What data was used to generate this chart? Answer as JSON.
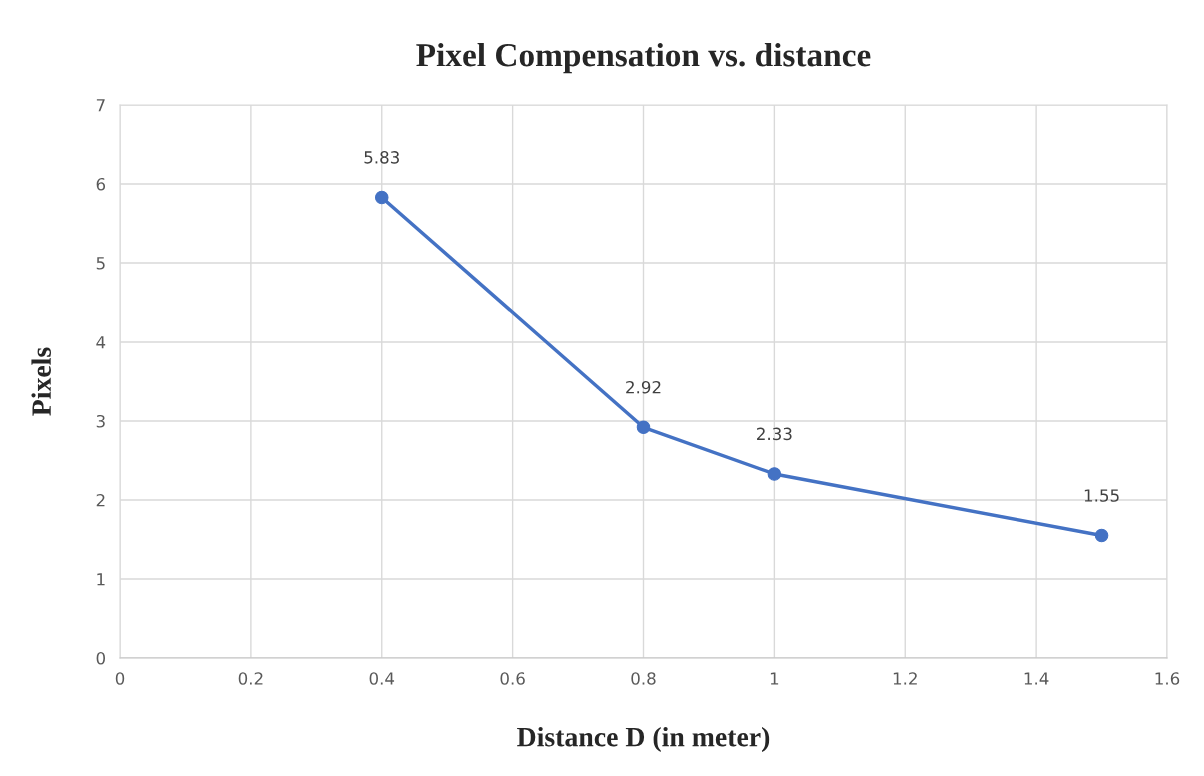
{
  "chart_data": {
    "type": "line",
    "title": "Pixel Compensation vs. distance",
    "xlabel": "Distance D (in meter)",
    "ylabel": "Pixels",
    "x": [
      0.4,
      0.8,
      1,
      1.5
    ],
    "series": [
      {
        "color": "#4472c4",
        "values": [
          5.83,
          2.92,
          2.33,
          1.55
        ]
      }
    ],
    "xlim": [
      0,
      1.6
    ],
    "xticks": [
      0,
      0.2,
      0.4,
      0.6,
      0.8,
      1,
      1.2,
      1.4,
      1.6
    ],
    "ylim": [
      0,
      7
    ],
    "yticks": [
      0,
      1,
      2,
      3,
      4,
      5,
      6,
      7
    ],
    "grid": true,
    "marker": "circle",
    "line_style": "solid",
    "data_labels": true
  }
}
